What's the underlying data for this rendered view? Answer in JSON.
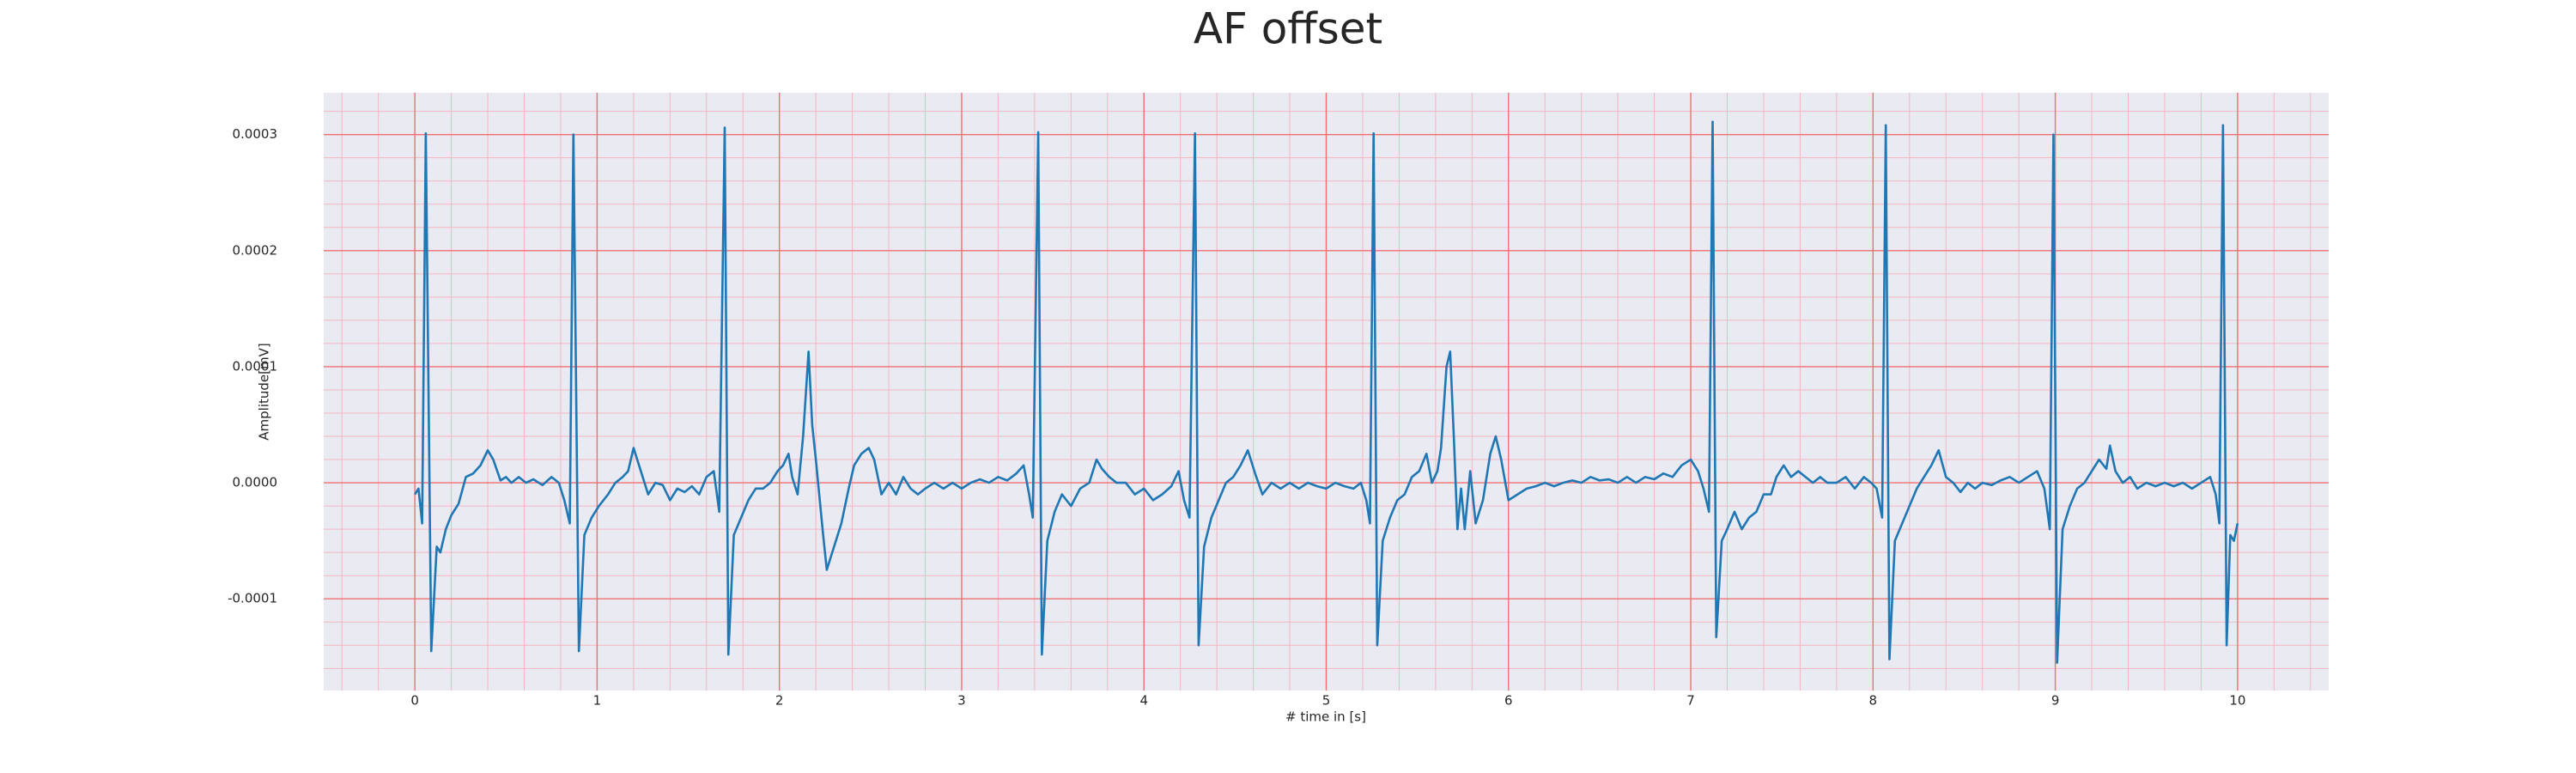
{
  "chart_data": {
    "type": "line",
    "title": "AF offset",
    "xlabel": "# time in [s]",
    "ylabel": "Amplitude[mV]",
    "color": "#1f77b4",
    "grid": true,
    "minor_grid": true,
    "xlim": [
      -0.5,
      10.5
    ],
    "ylim": [
      -0.000179,
      0.000336
    ],
    "xticks": [
      0,
      1,
      2,
      3,
      4,
      5,
      6,
      7,
      8,
      9,
      10
    ],
    "yticks": [
      -0.0001,
      {
        "value": 0,
        "label": "0.0000"
      },
      0.0001,
      0.0002,
      0.0003
    ],
    "x": [
      0,
      0.02,
      0.04,
      0.06,
      0.09,
      0.12,
      0.14,
      0.17,
      0.2,
      0.24,
      0.28,
      0.32,
      0.36,
      0.4,
      0.43,
      0.47,
      0.5,
      0.53,
      0.57,
      0.61,
      0.65,
      0.7,
      0.75,
      0.79,
      0.82,
      0.85,
      0.87,
      0.9,
      0.93,
      0.97,
      1.01,
      1.06,
      1.1,
      1.14,
      1.17,
      1.2,
      1.24,
      1.28,
      1.32,
      1.36,
      1.4,
      1.44,
      1.48,
      1.52,
      1.56,
      1.6,
      1.64,
      1.67,
      1.7,
      1.72,
      1.75,
      1.79,
      1.83,
      1.87,
      1.91,
      1.95,
      1.99,
      2.02,
      2.05,
      2.07,
      2.1,
      2.13,
      2.16,
      2.18,
      2.2,
      2.24,
      2.26,
      2.3,
      2.34,
      2.38,
      2.41,
      2.45,
      2.49,
      2.52,
      2.56,
      2.6,
      2.64,
      2.68,
      2.72,
      2.76,
      2.8,
      2.85,
      2.9,
      2.95,
      3,
      3.05,
      3.1,
      3.15,
      3.2,
      3.25,
      3.3,
      3.34,
      3.37,
      3.39,
      3.42,
      3.44,
      3.47,
      3.51,
      3.55,
      3.6,
      3.65,
      3.7,
      3.74,
      3.77,
      3.81,
      3.85,
      3.9,
      3.95,
      4,
      4.05,
      4.1,
      4.15,
      4.19,
      4.22,
      4.25,
      4.28,
      4.3,
      4.33,
      4.37,
      4.41,
      4.45,
      4.49,
      4.53,
      4.57,
      4.61,
      4.65,
      4.7,
      4.75,
      4.8,
      4.85,
      4.9,
      4.95,
      5,
      5.05,
      5.1,
      5.15,
      5.19,
      5.22,
      5.24,
      5.26,
      5.28,
      5.31,
      5.35,
      5.39,
      5.43,
      5.47,
      5.51,
      5.55,
      5.58,
      5.61,
      5.63,
      5.66,
      5.68,
      5.7,
      5.72,
      5.74,
      5.76,
      5.79,
      5.82,
      5.86,
      5.9,
      5.93,
      5.96,
      6,
      6.05,
      6.1,
      6.15,
      6.2,
      6.25,
      6.3,
      6.35,
      6.4,
      6.45,
      6.5,
      6.55,
      6.6,
      6.65,
      6.7,
      6.75,
      6.8,
      6.85,
      6.9,
      6.95,
      7,
      7.04,
      7.07,
      7.1,
      7.12,
      7.14,
      7.17,
      7.2,
      7.24,
      7.28,
      7.32,
      7.36,
      7.4,
      7.44,
      7.47,
      7.51,
      7.55,
      7.59,
      7.63,
      7.67,
      7.71,
      7.75,
      7.8,
      7.85,
      7.9,
      7.95,
      7.99,
      8.02,
      8.05,
      8.07,
      8.09,
      8.12,
      8.16,
      8.2,
      8.24,
      8.28,
      8.32,
      8.36,
      8.4,
      8.44,
      8.48,
      8.52,
      8.56,
      8.6,
      8.65,
      8.7,
      8.75,
      8.8,
      8.85,
      8.9,
      8.94,
      8.97,
      8.99,
      9.01,
      9.04,
      9.08,
      9.12,
      9.16,
      9.2,
      9.24,
      9.28,
      9.3,
      9.33,
      9.37,
      9.41,
      9.45,
      9.5,
      9.55,
      9.6,
      9.65,
      9.7,
      9.75,
      9.8,
      9.85,
      9.88,
      9.9,
      9.92,
      9.94,
      9.96,
      9.98,
      10
    ],
    "values": [
      -1e-05,
      -5e-06,
      -3.5e-05,
      0.000301,
      -0.000145,
      -5.5e-05,
      -6e-05,
      -4e-05,
      -2.8e-05,
      -1.8e-05,
      5e-06,
      8e-06,
      1.5e-05,
      2.8e-05,
      2e-05,
      2e-06,
      5e-06,
      0,
      5e-06,
      0,
      3e-06,
      -2e-06,
      5e-06,
      0,
      -1.5e-05,
      -3.5e-05,
      0.0003,
      -0.000145,
      -4.5e-05,
      -3e-05,
      -2e-05,
      -1e-05,
      0,
      5e-06,
      1e-05,
      3e-05,
      1e-05,
      -1e-05,
      0,
      -2e-06,
      -1.5e-05,
      -5e-06,
      -8e-06,
      -3e-06,
      -1e-05,
      5e-06,
      1e-05,
      -2.5e-05,
      0.000306,
      -0.000148,
      -4.5e-05,
      -3e-05,
      -1.5e-05,
      -5e-06,
      -5e-06,
      0,
      1e-05,
      1.5e-05,
      2.5e-05,
      5e-06,
      -1e-05,
      4e-05,
      0.000113,
      5e-05,
      2e-05,
      -4.5e-05,
      -7.5e-05,
      -5.5e-05,
      -3.5e-05,
      -5e-06,
      1.5e-05,
      2.5e-05,
      3e-05,
      2e-05,
      -1e-05,
      0,
      -1e-05,
      5e-06,
      -5e-06,
      -1e-05,
      -5e-06,
      0,
      -5e-06,
      0,
      -5e-06,
      0,
      3e-06,
      0,
      5e-06,
      2e-06,
      8e-06,
      1.5e-05,
      -1e-05,
      -3e-05,
      0.000302,
      -0.000148,
      -5e-05,
      -2.5e-05,
      -1e-05,
      -2e-05,
      -5e-06,
      0,
      2e-05,
      1.2e-05,
      5e-06,
      0,
      0,
      -1e-05,
      -5e-06,
      -1.5e-05,
      -1e-05,
      -3e-06,
      1e-05,
      -1.5e-05,
      -3e-05,
      0.000301,
      -0.00014,
      -5.5e-05,
      -3e-05,
      -1.5e-05,
      0,
      5e-06,
      1.5e-05,
      2.8e-05,
      8e-06,
      -1e-05,
      0,
      -5e-06,
      0,
      -5e-06,
      0,
      -3e-06,
      -5e-06,
      0,
      -3e-06,
      -5e-06,
      0,
      -1.5e-05,
      -3.5e-05,
      0.000301,
      -0.00014,
      -5e-05,
      -3e-05,
      -1.5e-05,
      -1e-05,
      5e-06,
      1e-05,
      2.5e-05,
      0,
      1e-05,
      3e-05,
      0.0001,
      0.000113,
      4e-05,
      -4e-05,
      -5e-06,
      -4e-05,
      1e-05,
      -3.5e-05,
      -1.5e-05,
      2.5e-05,
      4e-05,
      2e-05,
      -1.5e-05,
      -1e-05,
      -5e-06,
      -3e-06,
      0,
      -3e-06,
      0,
      2e-06,
      0,
      5e-06,
      2e-06,
      3e-06,
      0,
      5e-06,
      0,
      5e-06,
      3e-06,
      8e-06,
      5e-06,
      1.5e-05,
      2e-05,
      1e-05,
      -5e-06,
      -2.5e-05,
      0.000311,
      -0.000133,
      -5e-05,
      -4e-05,
      -2.5e-05,
      -4e-05,
      -3e-05,
      -2.5e-05,
      -1e-05,
      -1e-05,
      5e-06,
      1.5e-05,
      5e-06,
      1e-05,
      5e-06,
      0,
      5e-06,
      0,
      0,
      5e-06,
      -5e-06,
      5e-06,
      0,
      -5e-06,
      -3e-05,
      0.000308,
      -0.000152,
      -5e-05,
      -3.5e-05,
      -2e-05,
      -5e-06,
      5e-06,
      1.5e-05,
      2.8e-05,
      5e-06,
      0,
      -8e-06,
      0,
      -5e-06,
      0,
      -2e-06,
      2e-06,
      5e-06,
      0,
      5e-06,
      1e-05,
      -5e-06,
      -4e-05,
      0.0003,
      -0.000155,
      -4e-05,
      -2e-05,
      -5e-06,
      0,
      1e-05,
      2e-05,
      1.2e-05,
      3.2e-05,
      1e-05,
      0,
      5e-06,
      -5e-06,
      0,
      -3e-06,
      0,
      -3e-06,
      0,
      -5e-06,
      0,
      5e-06,
      -1e-05,
      -3.5e-05,
      0.000308,
      -0.00014,
      -4.5e-05,
      -5e-05,
      -3.5e-05
    ]
  }
}
